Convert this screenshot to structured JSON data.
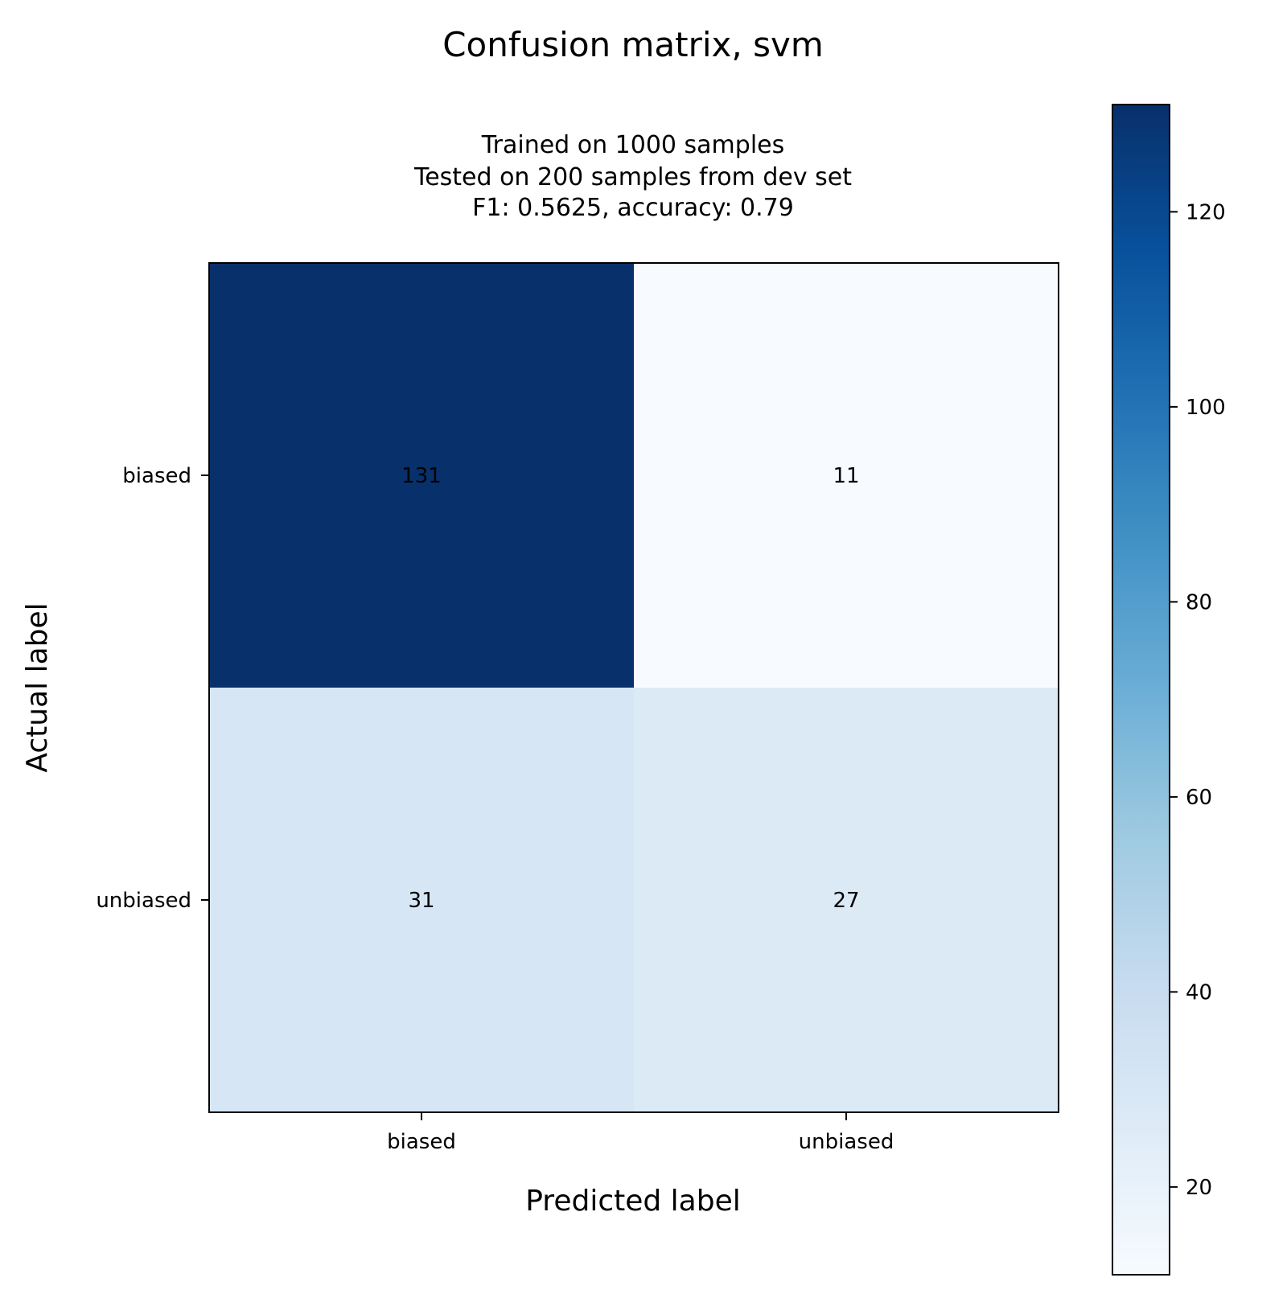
{
  "chart_data": {
    "type": "heatmap",
    "title": "Confusion matrix, svm",
    "subtitle_lines": [
      "Trained on 1000 samples",
      "Tested on 200 samples from dev set",
      "F1: 0.5625, accuracy: 0.79"
    ],
    "xlabel": "Predicted label",
    "ylabel": "Actual label",
    "x_categories": [
      "biased",
      "unbiased"
    ],
    "y_categories": [
      "biased",
      "unbiased"
    ],
    "matrix": [
      [
        131,
        11
      ],
      [
        31,
        27
      ]
    ],
    "colormap": "Blues",
    "colorbar": {
      "range": [
        11,
        131
      ],
      "ticks": [
        20,
        40,
        60,
        80,
        100,
        120
      ],
      "location": "right"
    },
    "grid": false,
    "colors": {
      "blues_scale": [
        "#f7fbff",
        "#deebf7",
        "#c6dbef",
        "#9ecae1",
        "#6baed6",
        "#4292c6",
        "#2171b5",
        "#08519c",
        "#08306b"
      ]
    }
  }
}
